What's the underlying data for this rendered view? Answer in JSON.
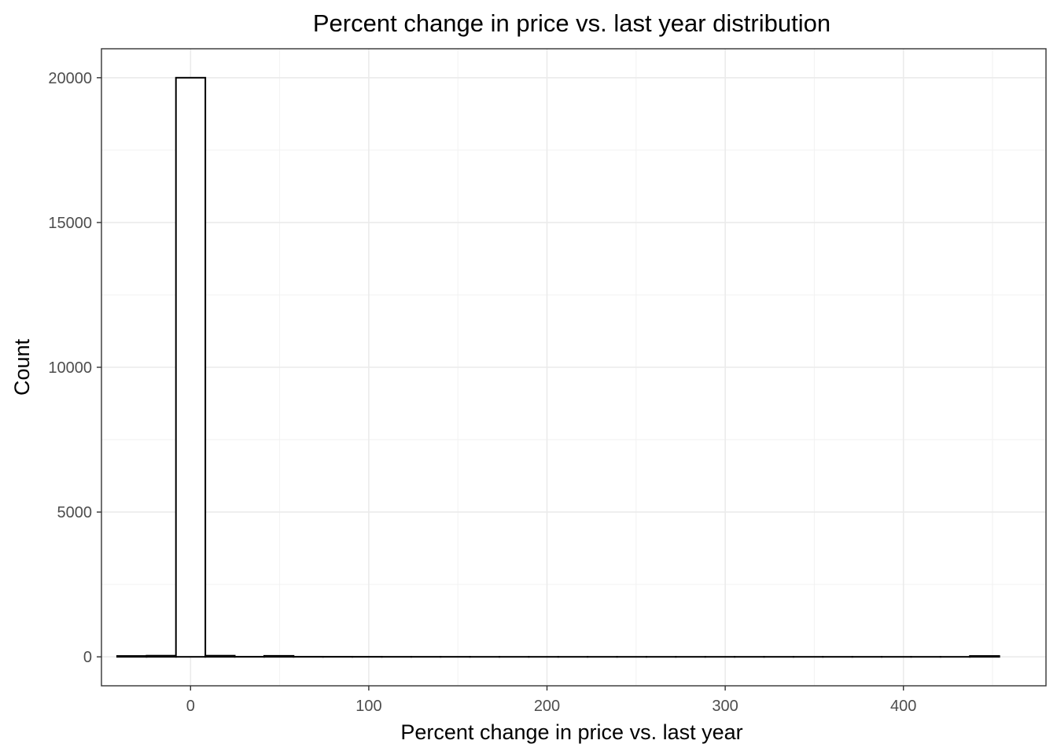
{
  "chart_data": {
    "type": "bar",
    "title": "Percent change in price vs. last year distribution",
    "xlabel": "Percent change in price vs. last year",
    "ylabel": "Count",
    "xlim": [
      -50,
      480
    ],
    "ylim": [
      -1000,
      21000
    ],
    "x_ticks": [
      0,
      100,
      200,
      300,
      400
    ],
    "x_tick_labels": [
      "0",
      "100",
      "200",
      "300",
      "400"
    ],
    "y_ticks": [
      0,
      5000,
      10000,
      15000,
      20000
    ],
    "y_tick_labels": [
      "0",
      "5000",
      "10000",
      "15000",
      "20000"
    ],
    "grid": true,
    "bin_width": 16.5,
    "bins": [
      {
        "x0": -41.2,
        "x1": -24.7,
        "count": 30
      },
      {
        "x0": -24.7,
        "x1": -8.2,
        "count": 40
      },
      {
        "x0": -8.2,
        "x1": 8.3,
        "count": 20000
      },
      {
        "x0": 8.3,
        "x1": 24.8,
        "count": 40
      },
      {
        "x0": 24.8,
        "x1": 41.3,
        "count": 5
      },
      {
        "x0": 41.3,
        "x1": 57.8,
        "count": 35
      },
      {
        "x0": 57.8,
        "x1": 74.3,
        "count": 5
      },
      {
        "x0": 74.3,
        "x1": 90.8,
        "count": 3
      },
      {
        "x0": 90.8,
        "x1": 107.3,
        "count": 2
      },
      {
        "x0": 107.3,
        "x1": 123.8,
        "count": 1
      },
      {
        "x0": 123.8,
        "x1": 140.3,
        "count": 1
      },
      {
        "x0": 140.3,
        "x1": 156.8,
        "count": 1
      },
      {
        "x0": 156.8,
        "x1": 173.3,
        "count": 0
      },
      {
        "x0": 173.3,
        "x1": 189.8,
        "count": 0
      },
      {
        "x0": 189.8,
        "x1": 206.3,
        "count": 0
      },
      {
        "x0": 206.3,
        "x1": 222.8,
        "count": 0
      },
      {
        "x0": 222.8,
        "x1": 239.3,
        "count": 0
      },
      {
        "x0": 239.3,
        "x1": 255.8,
        "count": 0
      },
      {
        "x0": 255.8,
        "x1": 272.3,
        "count": 0
      },
      {
        "x0": 272.3,
        "x1": 288.8,
        "count": 0
      },
      {
        "x0": 288.8,
        "x1": 305.3,
        "count": 0
      },
      {
        "x0": 305.3,
        "x1": 321.8,
        "count": 0
      },
      {
        "x0": 321.8,
        "x1": 338.3,
        "count": 0
      },
      {
        "x0": 338.3,
        "x1": 354.8,
        "count": 0
      },
      {
        "x0": 354.8,
        "x1": 371.3,
        "count": 0
      },
      {
        "x0": 371.3,
        "x1": 387.8,
        "count": 0
      },
      {
        "x0": 387.8,
        "x1": 404.3,
        "count": 0
      },
      {
        "x0": 404.3,
        "x1": 420.8,
        "count": 0
      },
      {
        "x0": 420.8,
        "x1": 437.3,
        "count": 0
      },
      {
        "x0": 437.3,
        "x1": 453.8,
        "count": 30
      }
    ]
  }
}
